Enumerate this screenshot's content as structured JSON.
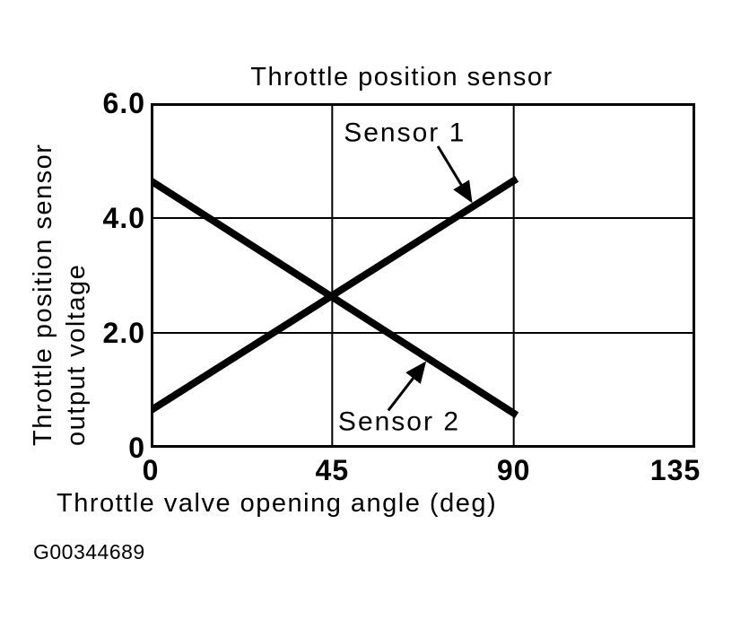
{
  "figure": {
    "code": "G00344689"
  },
  "chart_data": {
    "type": "line",
    "title": "Throttle position sensor",
    "xlabel": "Throttle valve opening angle (deg)",
    "ylabel": "Throttle position sensor output voltage",
    "ylabel_lines": [
      "Throttle position sensor",
      "output voltage"
    ],
    "xlim": [
      0,
      135
    ],
    "ylim": [
      0,
      6
    ],
    "xticks": [
      {
        "value": 0,
        "label": "0"
      },
      {
        "value": 45,
        "label": "45"
      },
      {
        "value": 90,
        "label": "90"
      },
      {
        "value": 135,
        "label": "135"
      }
    ],
    "yticks": [
      {
        "value": 0,
        "label": "0"
      },
      {
        "value": 2,
        "label": "2.0"
      },
      {
        "value": 4,
        "label": "4.0"
      },
      {
        "value": 6,
        "label": "6.0"
      }
    ],
    "grid": true,
    "legend": "none",
    "series": [
      {
        "name": "Sensor 1",
        "points": [
          [
            0,
            0.65
          ],
          [
            90,
            4.65
          ]
        ]
      },
      {
        "name": "Sensor 2",
        "points": [
          [
            0,
            4.65
          ],
          [
            90,
            0.6
          ]
        ]
      }
    ],
    "annotations": [
      {
        "label": "Sensor 1",
        "label_x": 63,
        "label_y": 5.48,
        "arrow_from": [
          71.2,
          5.25
        ],
        "arrow_to": [
          79.4,
          4.3
        ]
      },
      {
        "label": "Sensor 2",
        "label_x": 61.6,
        "label_y": 0.45,
        "arrow_from": [
          58.9,
          0.65
        ],
        "arrow_to": [
          67.9,
          1.47
        ]
      }
    ],
    "colors": {
      "ink": "#000000",
      "background": "#ffffff"
    }
  }
}
